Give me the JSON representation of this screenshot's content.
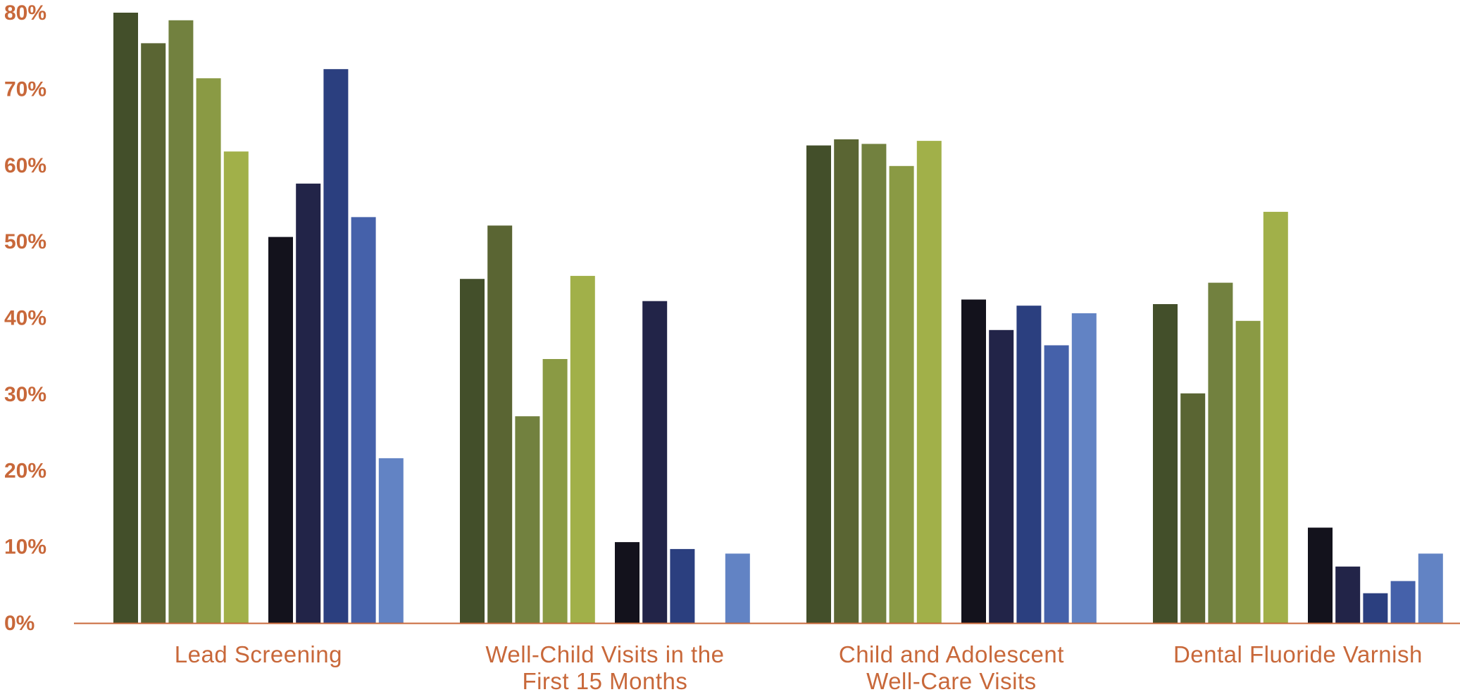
{
  "chart_data": {
    "type": "bar",
    "ylim": [
      0,
      80
    ],
    "y_ticks": [
      "0%",
      "10%",
      "20%",
      "30%",
      "40%",
      "50%",
      "60%",
      "70%",
      "80%"
    ],
    "grid": false,
    "legend": "none",
    "categories": [
      {
        "label_lines": [
          "Lead Screening"
        ]
      },
      {
        "label_lines": [
          "Well-Child Visits in the",
          "First 15 Months"
        ]
      },
      {
        "label_lines": [
          "Child and Adolescent",
          "Well-Care Visits"
        ]
      },
      {
        "label_lines": [
          "Dental Fluoride Varnish"
        ]
      }
    ],
    "groups": [
      {
        "values": [
          80,
          76,
          79,
          71.4,
          61.8,
          50.6,
          57.6,
          72.6,
          53.2,
          21.6
        ]
      },
      {
        "values": [
          45.1,
          52.1,
          27.1,
          34.6,
          45.5,
          10.6,
          42.2,
          9.7,
          null,
          9.1
        ]
      },
      {
        "values": [
          62.6,
          63.4,
          62.8,
          59.9,
          63.2,
          42.4,
          38.4,
          41.6,
          36.4,
          40.6
        ]
      },
      {
        "values": [
          41.8,
          30.1,
          44.6,
          39.6,
          53.9,
          12.5,
          7.4,
          3.9,
          5.5,
          9.1
        ]
      }
    ],
    "bar_colors": [
      "#434f2a",
      "#5a6533",
      "#72813f",
      "#8a9a44",
      "#a1b049",
      "#13121c",
      "#222448",
      "#2b3f7f",
      "#4561aa",
      "#6283c4"
    ],
    "axis_color": "#c8683a"
  }
}
